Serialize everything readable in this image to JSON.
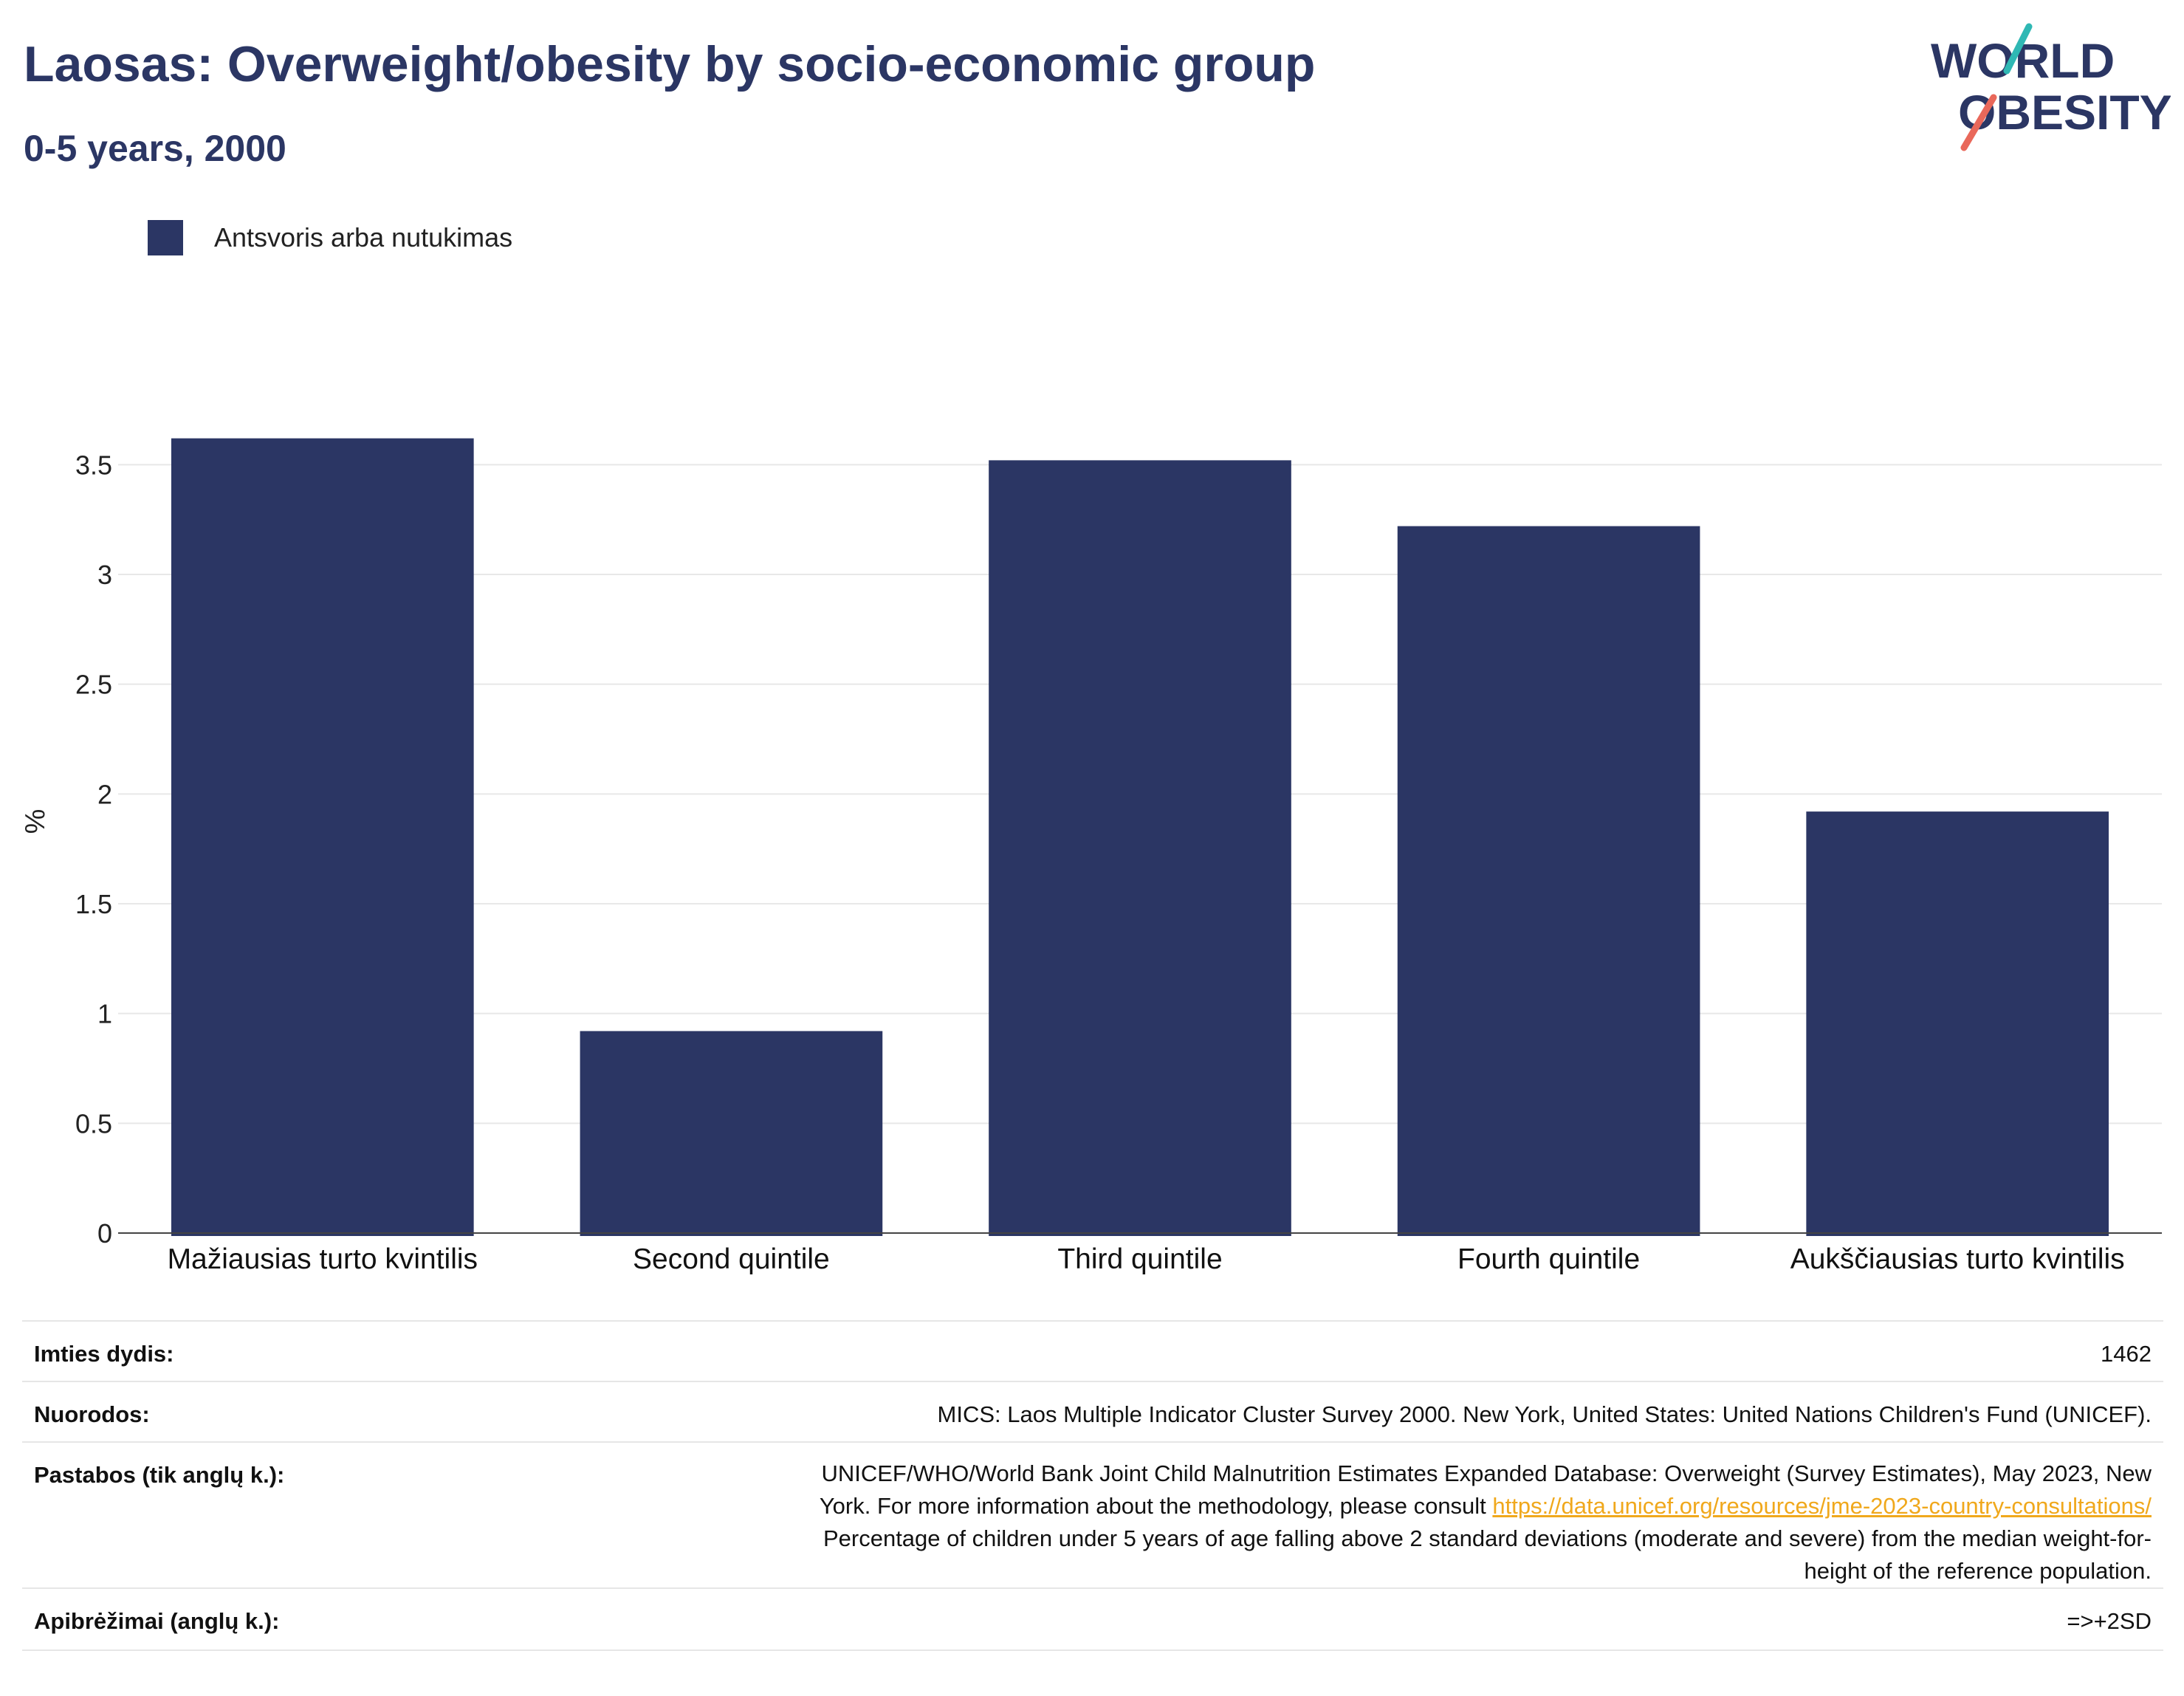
{
  "header": {
    "title": "Laosas: Overweight/obesity by socio-economic group",
    "subtitle": "0-5 years, 2000"
  },
  "logo": {
    "line1": "WORLD",
    "line2": "OBESITY"
  },
  "colors": {
    "bar": "#2b3664",
    "title": "#2b3664",
    "link": "#f0a81c",
    "logo_slash_teal": "#2fb8b4",
    "logo_slash_coral": "#e9685a"
  },
  "chart_data": {
    "type": "bar",
    "categories": [
      "Mažiausias turto kvintilis",
      "Second quintile",
      "Third quintile",
      "Fourth quintile",
      "Aukščiausias turto kvintilis"
    ],
    "series": [
      {
        "name": "Antsvoris arba nutukimas",
        "values": [
          3.62,
          0.92,
          3.52,
          3.22,
          1.92
        ]
      }
    ],
    "ylabel": "%",
    "xlabel": "",
    "ylim": [
      0,
      3.75
    ],
    "yticks": [
      "0",
      "0.5",
      "1",
      "1.5",
      "2",
      "2.5",
      "3",
      "3.5"
    ],
    "grid": true,
    "legend_position": "top-left"
  },
  "meta": {
    "sample_size_label": "Imties dydis:",
    "sample_size_value": "1462",
    "references_label": "Nuorodos:",
    "references_value": "MICS: Laos Multiple Indicator Cluster Survey 2000. New York, United States: United Nations Children's Fund (UNICEF).",
    "notes_label": "Pastabos (tik anglų k.):",
    "notes_line1": "UNICEF/WHO/World Bank Joint Child Malnutrition Estimates Expanded Database: Overweight (Survey Estimates), May 2023, New",
    "notes_line2_prefix": "York. For more information about the methodology, please consult ",
    "notes_link": "https://data.unicef.org/resources/jme-2023-country-consultations/",
    "notes_line3": "Percentage of children under 5 years of age falling above 2 standard deviations (moderate and severe) from the median weight-for-",
    "notes_line4": "height of the reference population.",
    "definitions_label": "Apibrėžimai (anglų k.):",
    "definitions_value": "=>+2SD"
  }
}
